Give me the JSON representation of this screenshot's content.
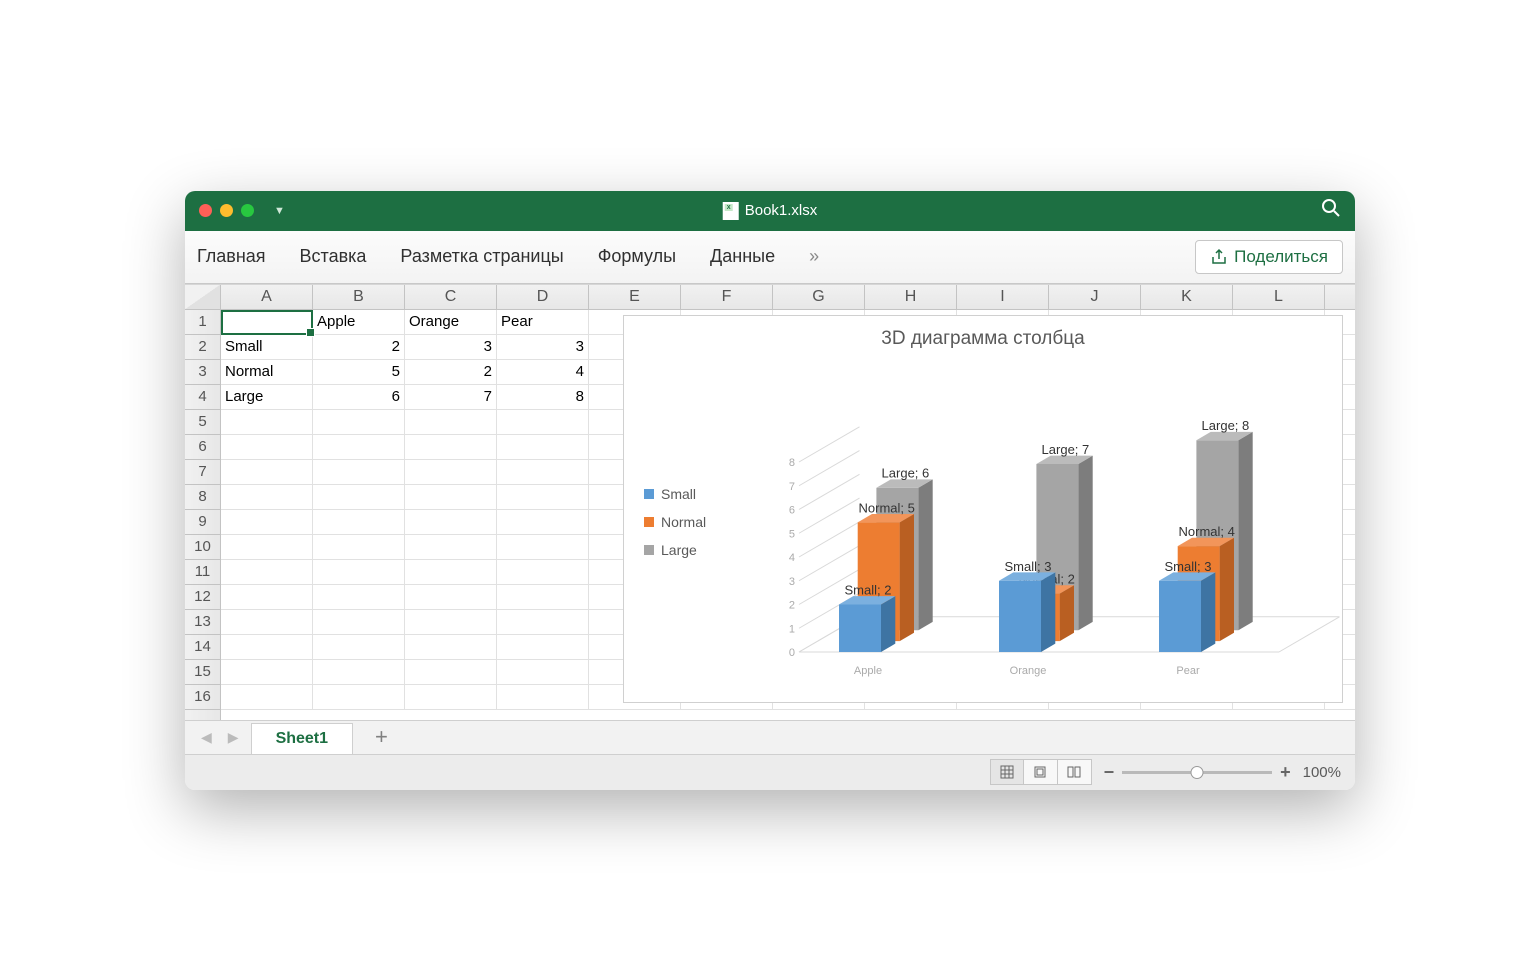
{
  "title": "Book1.xlsx",
  "ribbon": {
    "tabs": [
      "Главная",
      "Вставка",
      "Разметка страницы",
      "Формулы",
      "Данные"
    ],
    "more": "»",
    "share": "Поделиться"
  },
  "columns": [
    "A",
    "B",
    "C",
    "D",
    "E",
    "F",
    "G",
    "H",
    "I",
    "J",
    "K",
    "L"
  ],
  "rows": [
    "1",
    "2",
    "3",
    "4",
    "5",
    "6",
    "7",
    "8",
    "9",
    "10",
    "11",
    "12",
    "13",
    "14",
    "15",
    "16"
  ],
  "table": {
    "headers": [
      "",
      "Apple",
      "Orange",
      "Pear"
    ],
    "rows": [
      [
        "Small",
        "2",
        "3",
        "3"
      ],
      [
        "Normal",
        "5",
        "2",
        "4"
      ],
      [
        "Large",
        "6",
        "7",
        "8"
      ]
    ]
  },
  "chart": {
    "type": "bar3d",
    "title": "3D диаграмма столбца",
    "categories": [
      "Apple",
      "Orange",
      "Pear"
    ],
    "series": [
      {
        "name": "Small",
        "color": "#5b9bd5",
        "colorDark": "#3e74a3",
        "colorTop": "#7bb0df",
        "values": [
          2,
          3,
          3
        ]
      },
      {
        "name": "Normal",
        "color": "#ed7d31",
        "colorDark": "#b95f22",
        "colorTop": "#f2955a",
        "values": [
          5,
          2,
          4
        ]
      },
      {
        "name": "Large",
        "color": "#a5a5a5",
        "colorDark": "#7d7d7d",
        "colorTop": "#bbbbbb",
        "values": [
          6,
          7,
          8
        ]
      }
    ],
    "ylim": [
      0,
      8
    ],
    "ytick": 1,
    "axis_color": "#d9d9d9",
    "label_color": "#595959",
    "title_fontsize": 19
  },
  "sheet": {
    "active": "Sheet1"
  },
  "status": {
    "zoom": "100%"
  }
}
